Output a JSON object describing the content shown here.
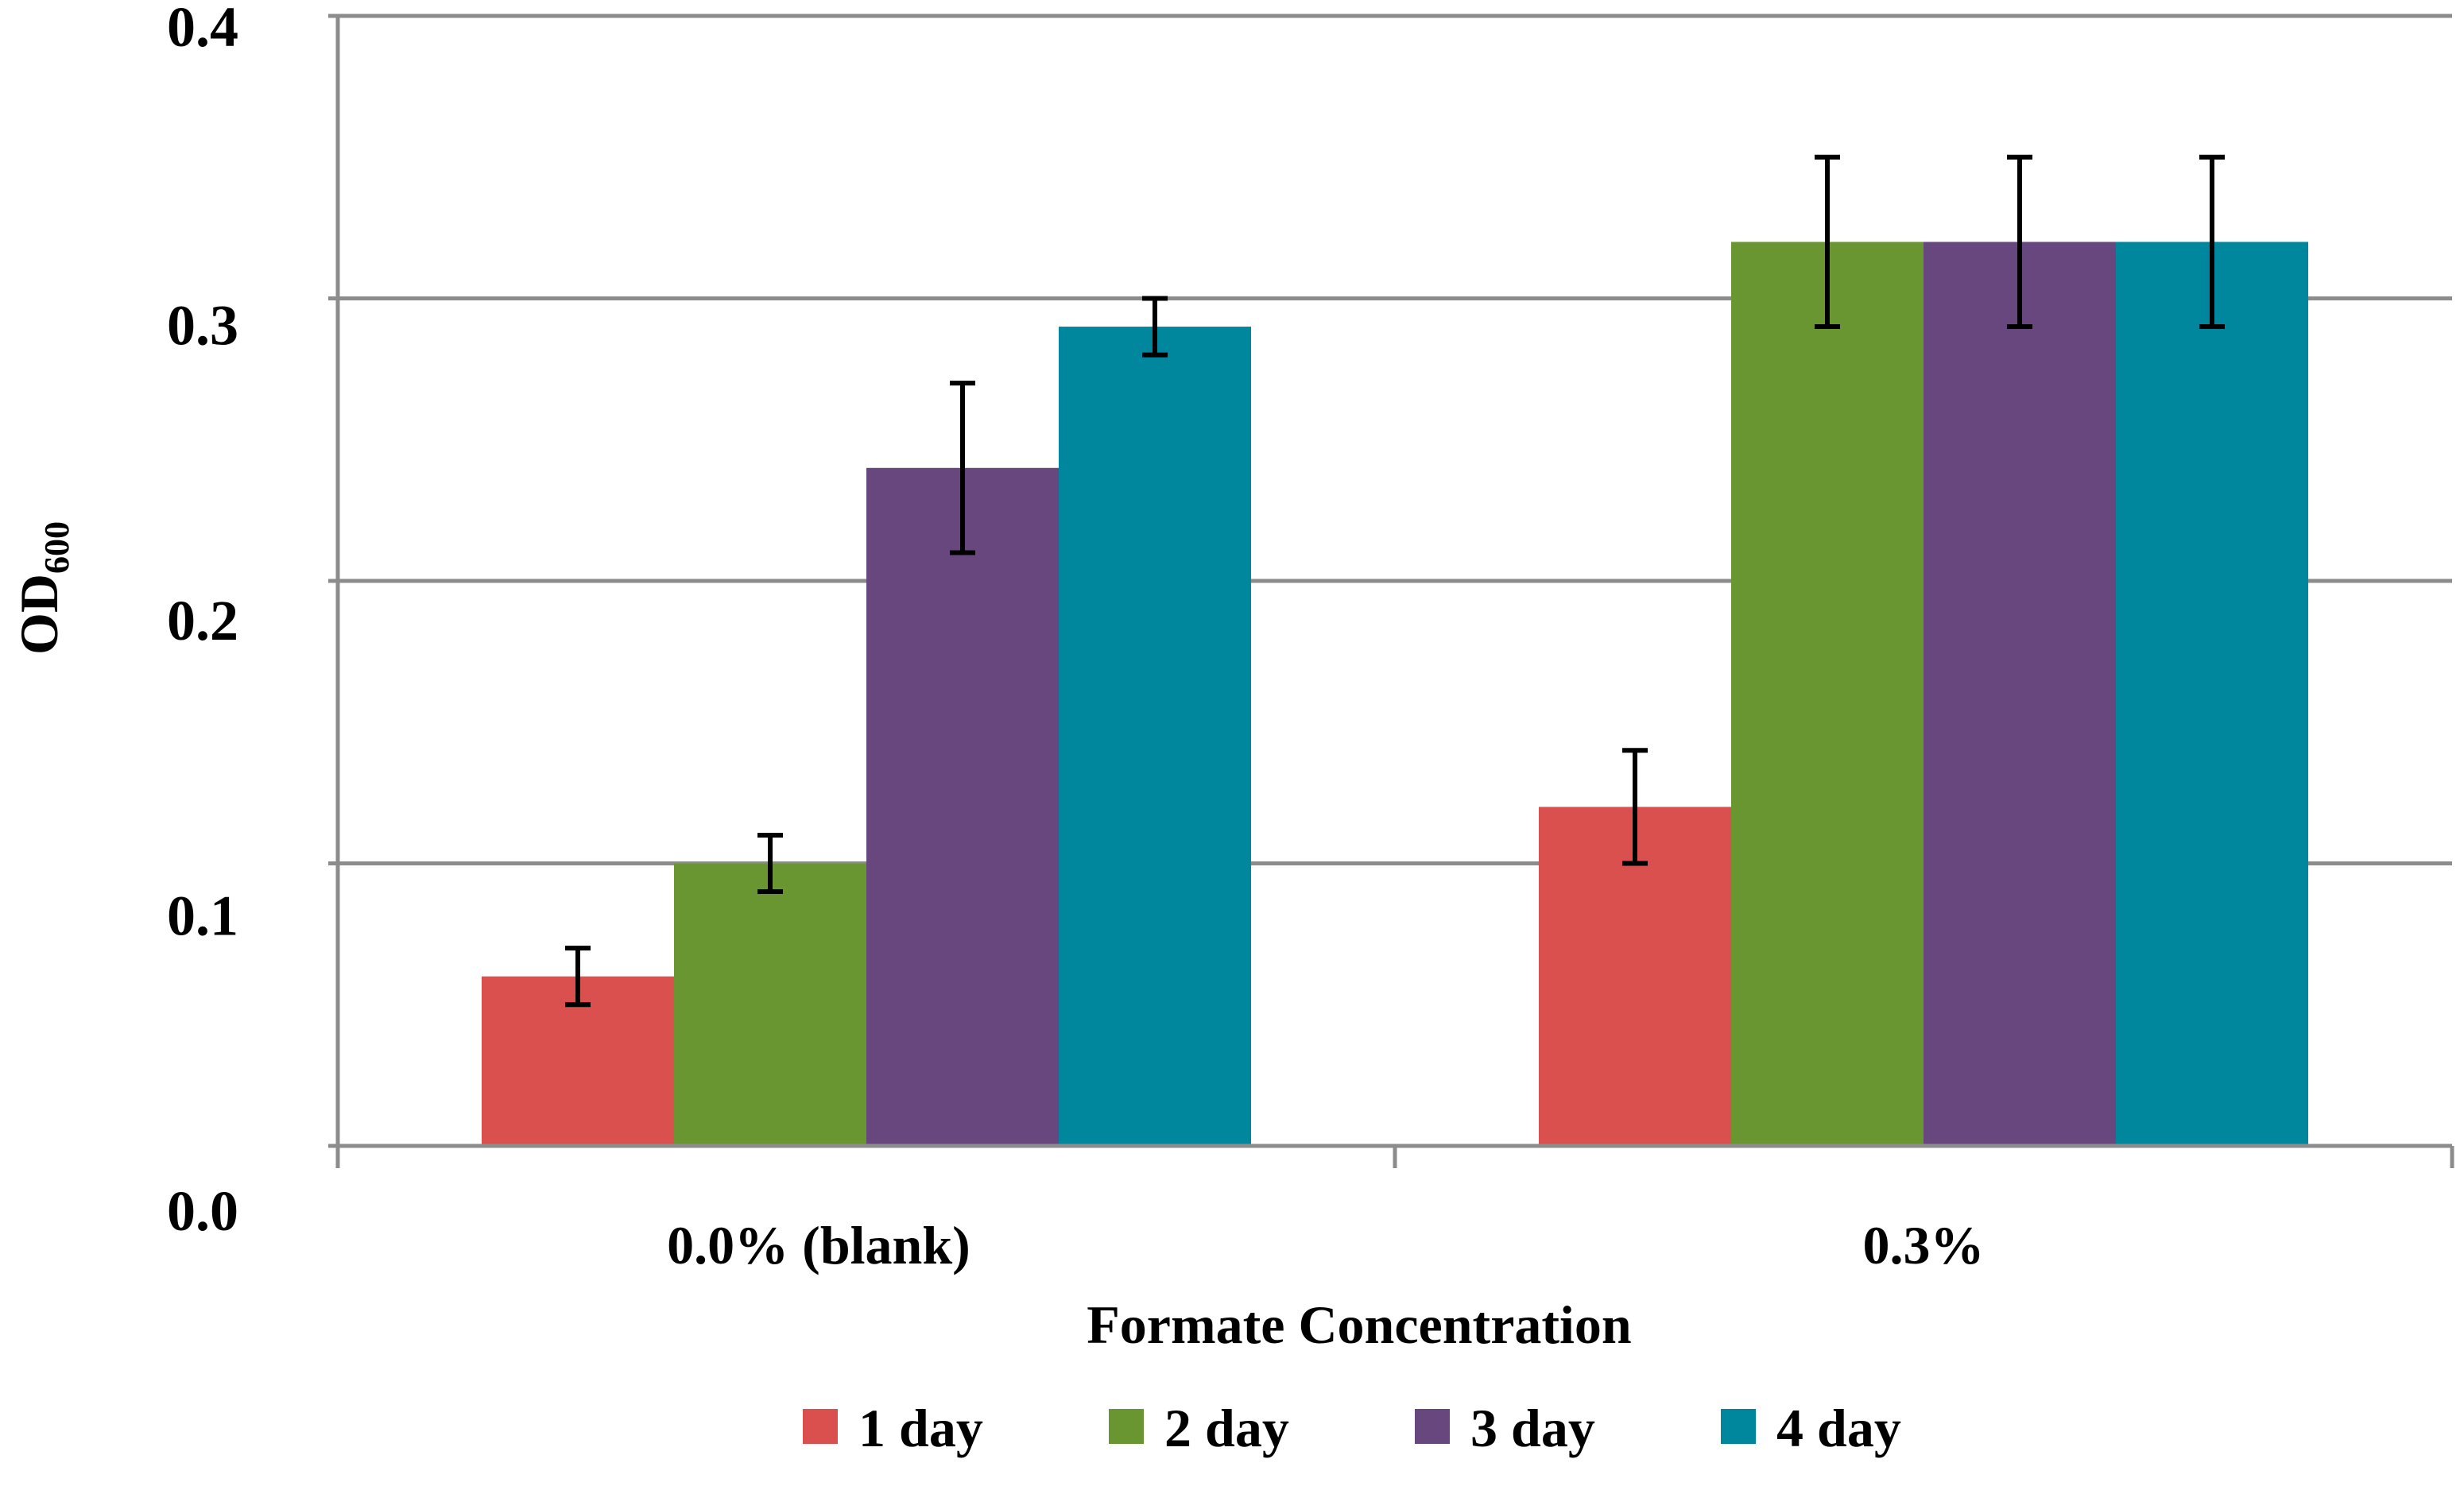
{
  "chart_data": {
    "type": "bar",
    "title": "",
    "xlabel": "Formate Concentration",
    "ylabel_main": "OD",
    "ylabel_sub": "600",
    "ylim": [
      0,
      0.4
    ],
    "yticks": [
      "0.0",
      "0.1",
      "0.2",
      "0.3",
      "0.4"
    ],
    "categories": [
      "0.0% (blank)",
      "0.3%"
    ],
    "series": [
      {
        "name": "1 day",
        "color": "#d9504e",
        "values": [
          0.06,
          0.12
        ],
        "errors": [
          0.01,
          0.02
        ]
      },
      {
        "name": "2 day",
        "color": "#6a9632",
        "values": [
          0.1,
          0.32
        ],
        "errors": [
          0.01,
          0.03
        ]
      },
      {
        "name": "3 day",
        "color": "#67477e",
        "values": [
          0.24,
          0.32
        ],
        "errors": [
          0.03,
          0.03
        ]
      },
      {
        "name": "4 day",
        "color": "#00879e",
        "values": [
          0.29,
          0.32
        ],
        "errors": [
          0.01,
          0.03
        ]
      }
    ],
    "grid": true,
    "legend_position": "bottom"
  }
}
